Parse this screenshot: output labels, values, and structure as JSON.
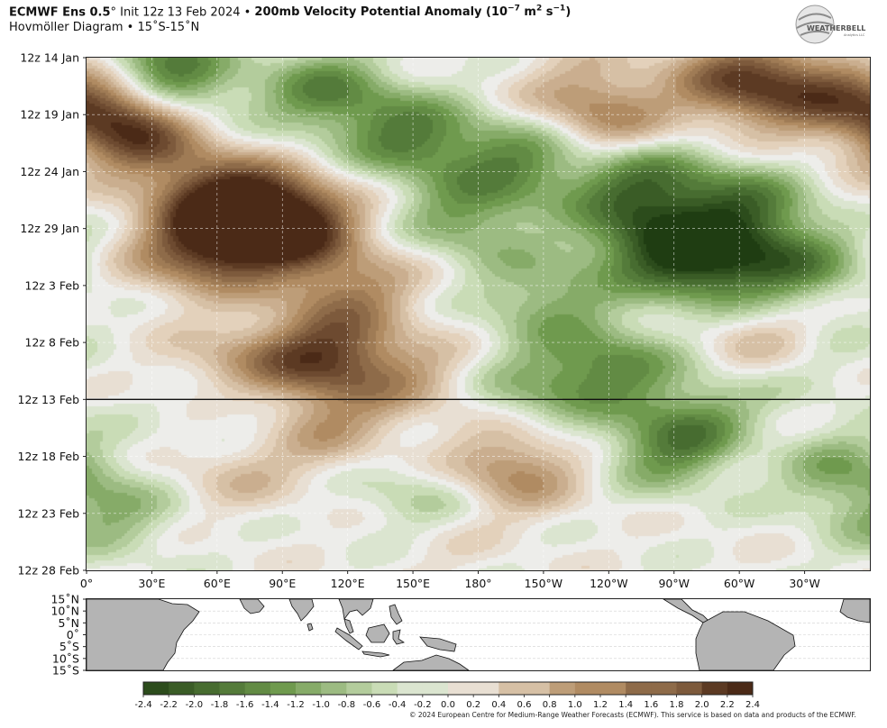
{
  "header": {
    "model": "ECMWF Ens 0.5",
    "degree": "°",
    "init": " Init 12z 13 Feb 2024 • ",
    "field": "200mb Velocity Potential Anomaly (10",
    "units_exp1": "−7",
    "units_mid": " m",
    "units_exp2": "2",
    "units_mid2": " s",
    "units_exp3": "−1",
    "units_end": ")",
    "subtitle": "Hovmöller Diagram • 15˚S-15˚N",
    "logo_text": "WEATHERBELL",
    "logo_sub": "Analytics LLC"
  },
  "credit": "© 2024 European Centre for Medium-Range Weather Forecasts (ECMWF). This service is based on data and products of the ECMWF.",
  "chart_data": {
    "type": "heatmap",
    "title": "200mb Velocity Potential Anomaly",
    "y_tick_labels": [
      "12z 14 Jan",
      "12z 19 Jan",
      "12z 24 Jan",
      "12z 29 Jan",
      "12z 3 Feb",
      "12z 8 Feb",
      "12z 13 Feb",
      "12z 18 Feb",
      "12z 23 Feb",
      "12z 28 Feb"
    ],
    "x_tick_labels": [
      "0°",
      "30°E",
      "60°E",
      "90°E",
      "120°E",
      "150°E",
      "180°",
      "150°W",
      "120°W",
      "90°W",
      "60°W",
      "30°W"
    ],
    "x_range_deg": [
      0,
      360
    ],
    "y_range_days": [
      0,
      45
    ],
    "init_line_day": 30,
    "grid": true,
    "map_lat_labels": [
      "15˚N",
      "10˚N",
      "5˚N",
      "0˚",
      "5˚S",
      "10˚S",
      "15˚S"
    ],
    "colorbar_ticks": [
      "-2.4",
      "-2.2",
      "-2.0",
      "-1.8",
      "-1.6",
      "-1.4",
      "-1.2",
      "-1.0",
      "-0.8",
      "-0.6",
      "-0.4",
      "-0.2",
      "0.0",
      "0.2",
      "0.4",
      "0.6",
      "0.8",
      "1.0",
      "1.2",
      "1.4",
      "1.6",
      "1.8",
      "2.0",
      "2.2",
      "2.4"
    ],
    "colorbar_range": [
      -2.4,
      2.4
    ],
    "colors": {
      "neg_strong": "#1f3d12",
      "neg_mid": "#6f9a4e",
      "neg_weak": "#c9dcb6",
      "neutral": "#ededea",
      "pos_weak": "#e3d1bb",
      "pos_mid": "#b08b62",
      "pos_strong": "#4b2a17",
      "land": "#b4b4b4"
    },
    "anomaly_centers": [
      {
        "lon": 15,
        "day": 4,
        "value": 2.0
      },
      {
        "lon": 25,
        "day": 7,
        "value": 1.4
      },
      {
        "lon": 40,
        "day": 3,
        "value": -0.9
      },
      {
        "lon": 60,
        "day": 12,
        "value": 1.8
      },
      {
        "lon": 78,
        "day": 15,
        "value": 2.1
      },
      {
        "lon": 95,
        "day": 14,
        "value": 1.6
      },
      {
        "lon": 50,
        "day": 17,
        "value": 1.5
      },
      {
        "lon": 120,
        "day": 20,
        "value": 1.2
      },
      {
        "lon": 110,
        "day": 26,
        "value": 1.9
      },
      {
        "lon": 70,
        "day": 27,
        "value": 0.9
      },
      {
        "lon": 150,
        "day": 28,
        "value": 0.7
      },
      {
        "lon": 110,
        "day": 32,
        "value": 0.9
      },
      {
        "lon": 195,
        "day": 36,
        "value": 1.3
      },
      {
        "lon": 160,
        "day": 41,
        "value": 0.5
      },
      {
        "lon": 70,
        "day": 36,
        "value": 0.6
      },
      {
        "lon": 230,
        "day": 3,
        "value": 0.8
      },
      {
        "lon": 300,
        "day": 2,
        "value": 1.8
      },
      {
        "lon": 335,
        "day": 3,
        "value": 1.3
      },
      {
        "lon": 240,
        "day": 6,
        "value": 0.8
      },
      {
        "lon": 315,
        "day": 25,
        "value": 0.9
      },
      {
        "lon": 300,
        "day": 33,
        "value": 0.5
      },
      {
        "lon": 30,
        "day": 1,
        "value": -1.6
      },
      {
        "lon": 110,
        "day": 3,
        "value": -1.4
      },
      {
        "lon": 150,
        "day": 7,
        "value": -1.5
      },
      {
        "lon": 200,
        "day": 9,
        "value": -1.3
      },
      {
        "lon": 255,
        "day": 11,
        "value": -1.6
      },
      {
        "lon": 300,
        "day": 13,
        "value": -1.5
      },
      {
        "lon": 285,
        "day": 18,
        "value": -1.9
      },
      {
        "lon": 255,
        "day": 16,
        "value": -1.4
      },
      {
        "lon": 325,
        "day": 18,
        "value": -1.3
      },
      {
        "lon": 175,
        "day": 14,
        "value": -1.1
      },
      {
        "lon": 210,
        "day": 21,
        "value": -1.0
      },
      {
        "lon": 240,
        "day": 27,
        "value": -1.3
      },
      {
        "lon": 205,
        "day": 29,
        "value": -0.8
      },
      {
        "lon": 270,
        "day": 34,
        "value": -1.5
      },
      {
        "lon": 290,
        "day": 31,
        "value": -0.9
      },
      {
        "lon": 155,
        "day": 39,
        "value": -0.9
      },
      {
        "lon": 70,
        "day": 31,
        "value": -0.6
      },
      {
        "lon": 10,
        "day": 40,
        "value": -0.8
      },
      {
        "lon": 345,
        "day": 36,
        "value": -0.9
      },
      {
        "lon": 330,
        "day": 26,
        "value": -0.6
      }
    ]
  }
}
